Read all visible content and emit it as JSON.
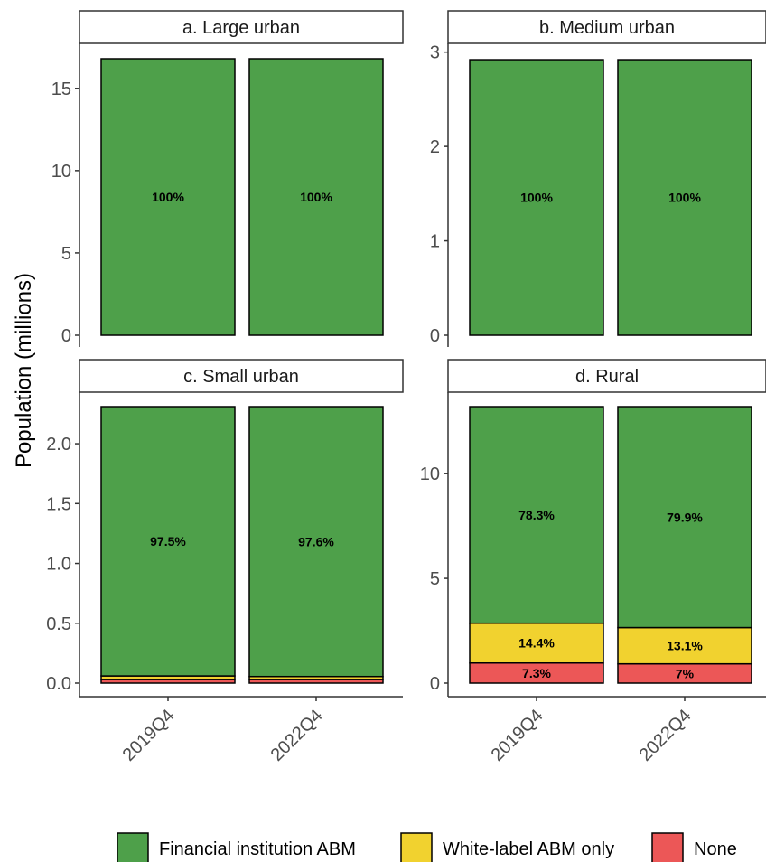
{
  "chart_data": {
    "type": "bar",
    "stacked": true,
    "ylabel": "Population (millions)",
    "xlabel": "",
    "categories": [
      "2019Q4",
      "2022Q4"
    ],
    "colors": {
      "Financial institution ABM": "#4ea04a",
      "White-label ABM only": "#f1d22f",
      "None": "#ec5757"
    },
    "legend": {
      "position": "bottom",
      "entries": [
        "Financial institution ABM",
        "White-label ABM only",
        "None"
      ]
    },
    "grid": false,
    "panels": [
      {
        "strip": "a. Large urban",
        "ylim": [
          0,
          16.8
        ],
        "yticks": [
          0,
          5,
          10,
          15
        ],
        "ytick_labels": [
          "0",
          "5",
          "10",
          "15"
        ],
        "series": [
          {
            "name": "None",
            "values": [
              0,
              0
            ],
            "labels": [
              "",
              ""
            ]
          },
          {
            "name": "White-label ABM only",
            "values": [
              0,
              0
            ],
            "labels": [
              "",
              ""
            ]
          },
          {
            "name": "Financial institution ABM",
            "values": [
              16.8,
              16.8
            ],
            "labels": [
              "100%",
              "100%"
            ]
          }
        ]
      },
      {
        "strip": "b. Medium urban",
        "ylim": [
          0,
          2.93
        ],
        "yticks": [
          0,
          1,
          2,
          3
        ],
        "ytick_labels": [
          "0",
          "1",
          "2",
          "3"
        ],
        "series": [
          {
            "name": "None",
            "values": [
              0,
              0
            ],
            "labels": [
              "",
              ""
            ]
          },
          {
            "name": "White-label ABM only",
            "values": [
              0,
              0
            ],
            "labels": [
              "",
              ""
            ]
          },
          {
            "name": "Financial institution ABM",
            "values": [
              2.92,
              2.92
            ],
            "labels": [
              "100%",
              "100%"
            ]
          }
        ]
      },
      {
        "strip": "c. Small urban",
        "ylim": [
          0,
          2.31
        ],
        "yticks": [
          0,
          0.5,
          1.0,
          1.5,
          2.0
        ],
        "ytick_labels": [
          "0.0",
          "0.5",
          "1.0",
          "1.5",
          "2.0"
        ],
        "series": [
          {
            "name": "None",
            "values": [
              0.03,
              0.03
            ],
            "labels": [
              "",
              ""
            ]
          },
          {
            "name": "White-label ABM only",
            "values": [
              0.03,
              0.025
            ],
            "labels": [
              "",
              ""
            ]
          },
          {
            "name": "Financial institution ABM",
            "values": [
              2.25,
              2.255
            ],
            "labels": [
              "97.5%",
              "97.6%"
            ]
          }
        ]
      },
      {
        "strip": "d. Rural",
        "ylim": [
          0,
          13.2
        ],
        "yticks": [
          0,
          5,
          10
        ],
        "ytick_labels": [
          "0",
          "5",
          "10"
        ],
        "series": [
          {
            "name": "None",
            "values": [
              0.96,
              0.92
            ],
            "labels": [
              "7.3%",
              "7%"
            ]
          },
          {
            "name": "White-label ABM only",
            "values": [
              1.9,
              1.73
            ],
            "labels": [
              "14.4%",
              "13.1%"
            ]
          },
          {
            "name": "Financial institution ABM",
            "values": [
              10.34,
              10.55
            ],
            "labels": [
              "78.3%",
              "79.9%"
            ]
          }
        ]
      }
    ]
  }
}
